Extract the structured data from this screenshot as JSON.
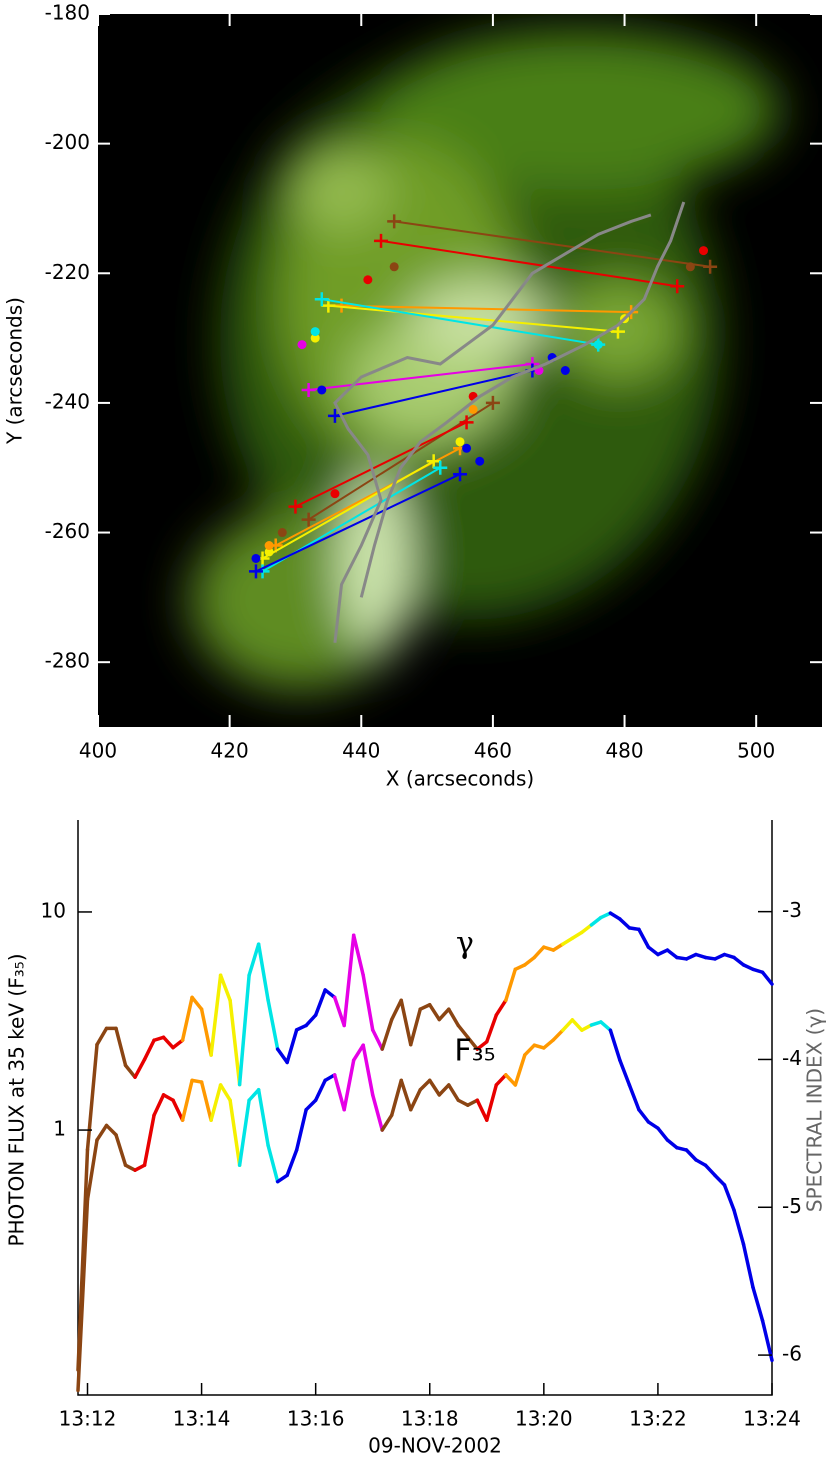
{
  "chart_data": [
    {
      "type": "image",
      "xlabel": "X (arcseconds)",
      "ylabel": "Y (arcseconds)",
      "xlim": [
        400,
        510
      ],
      "ylim": [
        -290,
        -180
      ],
      "xticks": [
        400,
        420,
        440,
        460,
        480,
        500
      ],
      "yticks": [
        -280,
        -260,
        -240,
        -220,
        -200,
        -180
      ],
      "series": [
        {
          "color": "#8b4513",
          "marker": "cross",
          "line": true,
          "x": [
            445,
            493
          ],
          "y": [
            -212,
            -219
          ]
        },
        {
          "color": "#e80000",
          "marker": "cross",
          "line": true,
          "x": [
            443,
            488
          ],
          "y": [
            -215,
            -222
          ]
        },
        {
          "color": "#ff9900",
          "marker": "cross",
          "line": true,
          "x": [
            437,
            481
          ],
          "y": [
            -225,
            -226
          ]
        },
        {
          "color": "#f5f000",
          "marker": "cross",
          "line": true,
          "x": [
            435,
            479
          ],
          "y": [
            -225,
            -229
          ]
        },
        {
          "color": "#00e5e5",
          "marker": "cross",
          "line": true,
          "x": [
            434,
            476
          ],
          "y": [
            -224,
            -231
          ]
        },
        {
          "color": "#e600e6",
          "marker": "cross",
          "line": true,
          "x": [
            432,
            466
          ],
          "y": [
            -238,
            -234
          ]
        },
        {
          "color": "#0000e8",
          "marker": "cross",
          "line": true,
          "x": [
            436,
            466
          ],
          "y": [
            -242,
            -235
          ]
        },
        {
          "color": "#8b4513",
          "marker": "cross",
          "line": true,
          "x": [
            432,
            460
          ],
          "y": [
            -258,
            -240
          ]
        },
        {
          "color": "#e80000",
          "marker": "cross",
          "line": true,
          "x": [
            430,
            456
          ],
          "y": [
            -256,
            -243
          ]
        },
        {
          "color": "#ff9900",
          "marker": "cross",
          "line": true,
          "x": [
            427,
            455
          ],
          "y": [
            -262,
            -247
          ]
        },
        {
          "color": "#f5f000",
          "marker": "cross",
          "line": true,
          "x": [
            425,
            451
          ],
          "y": [
            -264,
            -249
          ]
        },
        {
          "color": "#00e5e5",
          "marker": "cross",
          "line": true,
          "x": [
            425,
            452
          ],
          "y": [
            -266,
            -250
          ]
        },
        {
          "color": "#0000e8",
          "marker": "cross",
          "line": true,
          "x": [
            424,
            455
          ],
          "y": [
            -266,
            -251
          ]
        },
        {
          "color": "#e80000",
          "marker": "dot",
          "line": false,
          "x": [
            441,
            492,
            457,
            436
          ],
          "y": [
            -221,
            -216.5,
            -239,
            -254
          ]
        },
        {
          "color": "#8b4513",
          "marker": "dot",
          "line": false,
          "x": [
            445,
            490,
            428
          ],
          "y": [
            -219,
            -219,
            -260
          ]
        },
        {
          "color": "#f5f000",
          "marker": "dot",
          "line": false,
          "x": [
            433,
            480,
            426,
            455
          ],
          "y": [
            -230,
            -227,
            -263,
            -246
          ]
        },
        {
          "color": "#00e5e5",
          "marker": "dot",
          "line": false,
          "x": [
            433,
            476
          ],
          "y": [
            -229,
            -231
          ]
        },
        {
          "color": "#e600e6",
          "marker": "dot",
          "line": false,
          "x": [
            431,
            467
          ],
          "y": [
            -231,
            -235
          ]
        },
        {
          "color": "#0000e8",
          "marker": "dot",
          "line": false,
          "x": [
            434,
            469,
            471,
            424,
            456,
            458
          ],
          "y": [
            -238,
            -233,
            -235,
            -264,
            -247,
            -249
          ]
        },
        {
          "color": "#ff9900",
          "marker": "dot",
          "line": false,
          "x": [
            426,
            457
          ],
          "y": [
            -262,
            -241
          ]
        },
        {
          "color": "#888888",
          "marker": "none",
          "line": true,
          "x": [
            436,
            437,
            440,
            443,
            441,
            438,
            436,
            440,
            447,
            452,
            456,
            460,
            463,
            466,
            471,
            476,
            481,
            484
          ],
          "y": [
            -277,
            -268,
            -262,
            -255,
            -248,
            -244,
            -240,
            -236,
            -233,
            -234,
            -231,
            -228,
            -224,
            -220,
            -217,
            -214,
            -212,
            -211
          ]
        },
        {
          "color": "#888888",
          "marker": "none",
          "line": true,
          "x": [
            489,
            488,
            487,
            485,
            483,
            479,
            474,
            468,
            463,
            458,
            453,
            449,
            446,
            444,
            442,
            440
          ],
          "y": [
            -209,
            -212,
            -215,
            -219,
            -224,
            -228,
            -231,
            -234,
            -236,
            -239,
            -243,
            -246,
            -250,
            -255,
            -262,
            -270
          ]
        }
      ]
    },
    {
      "type": "line",
      "xlabel": "09-NOV-2002",
      "ylabel": "PHOTON FLUX at 35 keV (F₃₅)",
      "y2label": "SPECTRAL INDEX (γ)",
      "ylog": true,
      "xlim": [
        "13:11:50",
        "13:24:00"
      ],
      "xticks": [
        {
          "value": "13:12:00",
          "label": "13:12"
        },
        {
          "value": "13:14:00",
          "label": "13:14"
        },
        {
          "value": "13:16:00",
          "label": "13:16"
        },
        {
          "value": "13:18:00",
          "label": "13:18"
        },
        {
          "value": "13:20:00",
          "label": "13:20"
        },
        {
          "value": "13:22:00",
          "label": "13:22"
        },
        {
          "value": "13:24:00",
          "label": "13:24"
        }
      ],
      "ylim": [
        0.061,
        26.4
      ],
      "yticks": [
        1,
        10
      ],
      "y2lim": [
        -6.27,
        -2.38
      ],
      "y2ticks": [
        -6,
        -5,
        -4,
        -3
      ],
      "x": [
        "13:11:50",
        "13:12:00",
        "13:12:10",
        "13:12:20",
        "13:12:30",
        "13:12:40",
        "13:12:50",
        "13:13:00",
        "13:13:10",
        "13:13:20",
        "13:13:30",
        "13:13:40",
        "13:13:50",
        "13:14:00",
        "13:14:10",
        "13:14:20",
        "13:14:30",
        "13:14:40",
        "13:14:50",
        "13:15:00",
        "13:15:10",
        "13:15:20",
        "13:15:30",
        "13:15:40",
        "13:15:50",
        "13:16:00",
        "13:16:10",
        "13:16:20",
        "13:16:30",
        "13:16:40",
        "13:16:50",
        "13:17:00",
        "13:17:10",
        "13:17:20",
        "13:17:30",
        "13:17:40",
        "13:17:50",
        "13:18:00",
        "13:18:10",
        "13:18:20",
        "13:18:30",
        "13:18:40",
        "13:18:50",
        "13:19:00",
        "13:19:10",
        "13:19:20",
        "13:19:30",
        "13:19:40",
        "13:19:50",
        "13:20:00",
        "13:20:10",
        "13:20:20",
        "13:20:30",
        "13:20:40",
        "13:20:50",
        "13:21:00",
        "13:21:10",
        "13:21:20",
        "13:21:30",
        "13:21:40",
        "13:21:50",
        "13:22:00",
        "13:22:10",
        "13:22:20",
        "13:22:30",
        "13:22:40",
        "13:22:50",
        "13:23:00",
        "13:23:10",
        "13:23:20",
        "13:23:30",
        "13:23:40",
        "13:23:50",
        "13:24:00"
      ],
      "point_colors": [
        "#8b4513",
        "#8b4513",
        "#8b4513",
        "#8b4513",
        "#8b4513",
        "#8b4513",
        "#8b4513",
        "#e80000",
        "#e80000",
        "#e80000",
        "#e80000",
        "#e80000",
        "#ff9900",
        "#ff9900",
        "#ff9900",
        "#f5f000",
        "#f5f000",
        "#f5f000",
        "#00e5e5",
        "#00e5e5",
        "#00e5e5",
        "#00e5e5",
        "#0000e8",
        "#0000e8",
        "#0000e8",
        "#0000e8",
        "#0000e8",
        "#0000e8",
        "#e600e6",
        "#e600e6",
        "#e600e6",
        "#e600e6",
        "#e600e6",
        "#8b4513",
        "#8b4513",
        "#8b4513",
        "#8b4513",
        "#8b4513",
        "#8b4513",
        "#8b4513",
        "#8b4513",
        "#8b4513",
        "#8b4513",
        "#e80000",
        "#e80000",
        "#e80000",
        "#ff9900",
        "#ff9900",
        "#ff9900",
        "#ff9900",
        "#ff9900",
        "#ff9900",
        "#f5f000",
        "#f5f000",
        "#f5f000",
        "#00e5e5",
        "#00e5e5",
        "#0000e8",
        "#0000e8",
        "#0000e8",
        "#0000e8",
        "#0000e8",
        "#0000e8",
        "#0000e8",
        "#0000e8",
        "#0000e8",
        "#0000e8",
        "#0000e8",
        "#0000e8",
        "#0000e8",
        "#0000e8",
        "#0000e8",
        "#0000e8",
        "#0000e8"
      ],
      "series": [
        {
          "name": "γ",
          "axis": "y2",
          "values": [
            -6.1,
            -4.61,
            -3.9,
            -3.79,
            -3.79,
            -4.04,
            -4.12,
            -4.0,
            -3.87,
            -3.85,
            -3.92,
            -3.87,
            -3.58,
            -3.66,
            -3.97,
            -3.43,
            -3.6,
            -4.17,
            -3.43,
            -3.22,
            -3.6,
            -3.93,
            -4.02,
            -3.8,
            -3.77,
            -3.7,
            -3.53,
            -3.58,
            -3.77,
            -3.16,
            -3.43,
            -3.8,
            -3.93,
            -3.73,
            -3.6,
            -3.9,
            -3.66,
            -3.63,
            -3.73,
            -3.66,
            -3.77,
            -3.85,
            -3.93,
            -3.88,
            -3.7,
            -3.6,
            -3.39,
            -3.36,
            -3.31,
            -3.24,
            -3.26,
            -3.22,
            -3.18,
            -3.14,
            -3.09,
            -3.04,
            -3.01,
            -3.05,
            -3.11,
            -3.12,
            -3.24,
            -3.29,
            -3.26,
            -3.31,
            -3.32,
            -3.29,
            -3.31,
            -3.32,
            -3.29,
            -3.31,
            -3.36,
            -3.39,
            -3.41,
            -3.49
          ]
        },
        {
          "name": "F₃₅",
          "values": [
            0.064,
            0.48,
            0.9,
            1.05,
            0.95,
            0.69,
            0.655,
            0.69,
            1.17,
            1.45,
            1.37,
            1.11,
            1.69,
            1.66,
            1.11,
            1.61,
            1.37,
            0.69,
            1.37,
            1.53,
            0.85,
            0.58,
            0.62,
            0.81,
            1.24,
            1.37,
            1.69,
            1.79,
            1.24,
            2.09,
            2.45,
            1.45,
            1.0,
            1.17,
            1.69,
            1.24,
            1.53,
            1.69,
            1.45,
            1.61,
            1.37,
            1.3,
            1.37,
            1.11,
            1.61,
            1.79,
            1.61,
            2.21,
            2.45,
            2.38,
            2.59,
            2.87,
            3.2,
            2.87,
            3.03,
            3.13,
            2.87,
            2.09,
            1.61,
            1.24,
            1.09,
            1.02,
            0.9,
            0.83,
            0.81,
            0.73,
            0.69,
            0.62,
            0.56,
            0.43,
            0.3,
            0.19,
            0.134,
            0.088
          ]
        }
      ]
    }
  ]
}
